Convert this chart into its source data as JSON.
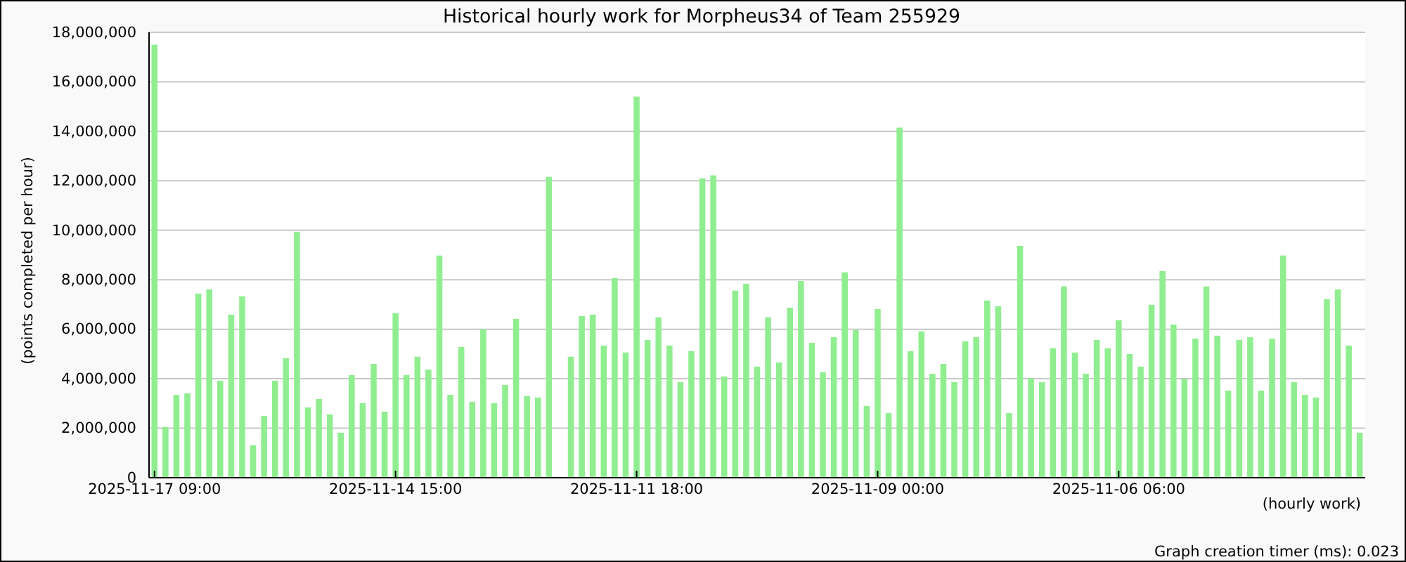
{
  "chart_data": {
    "type": "bar",
    "title": "Historical hourly work for Morpheus34 of Team 255929",
    "xlabel": "(hourly work)",
    "ylabel": "(points completed per hour)",
    "annotations": [
      "Graph creation timer (ms): 0.023"
    ],
    "categories": [
      "2025-11-17 09:00",
      null,
      null,
      null,
      null,
      null,
      null,
      null,
      null,
      null,
      null,
      null,
      null,
      null,
      null,
      null,
      null,
      null,
      null,
      null,
      null,
      null,
      "2025-11-14 15:00",
      null,
      null,
      null,
      null,
      null,
      null,
      null,
      null,
      null,
      null,
      null,
      null,
      null,
      null,
      null,
      null,
      null,
      null,
      null,
      null,
      null,
      "2025-11-11 18:00",
      null,
      null,
      null,
      null,
      null,
      null,
      null,
      null,
      null,
      null,
      null,
      null,
      null,
      null,
      null,
      null,
      null,
      null,
      null,
      null,
      null,
      "2025-11-09 00:00",
      null,
      null,
      null,
      null,
      null,
      null,
      null,
      null,
      null,
      null,
      null,
      null,
      null,
      null,
      null,
      null,
      null,
      null,
      null,
      null,
      null,
      "2025-11-06 06:00",
      null,
      null,
      null,
      null,
      null,
      null,
      null,
      null,
      null,
      null,
      null,
      null,
      null,
      null,
      null,
      null,
      null,
      null,
      null,
      null,
      null,
      null
    ],
    "values": [
      17500000,
      2050000,
      3350000,
      3410000,
      7440000,
      7610000,
      3920000,
      6590000,
      7330000,
      1310000,
      2500000,
      3920000,
      4830000,
      9940000,
      2840000,
      3180000,
      2560000,
      1820000,
      4150000,
      3010000,
      4600000,
      2670000,
      6650000,
      4150000,
      4890000,
      4370000,
      8980000,
      3350000,
      5280000,
      3070000,
      6000000,
      3010000,
      3750000,
      6420000,
      3300000,
      3240000,
      12160000,
      null,
      4890000,
      6530000,
      6590000,
      5340000,
      8070000,
      5060000,
      15400000,
      5570000,
      6480000,
      5340000,
      3860000,
      5110000,
      12100000,
      12220000,
      4090000,
      7560000,
      7840000,
      4490000,
      6480000,
      4660000,
      6870000,
      7950000,
      5450000,
      4260000,
      5680000,
      8300000,
      5970000,
      2900000,
      6820000,
      2610000,
      14150000,
      5110000,
      5910000,
      4200000,
      4600000,
      3860000,
      5510000,
      5680000,
      7160000,
      6930000,
      2610000,
      9370000,
      4030000,
      3860000,
      5230000,
      7730000,
      5060000,
      4200000,
      5570000,
      5230000,
      6360000,
      5000000,
      4490000,
      6990000,
      8350000,
      6190000,
      3980000,
      5620000,
      7730000,
      5740000,
      3520000,
      5570000,
      5680000,
      3520000,
      5620000,
      8980000,
      3860000,
      3350000,
      3240000,
      7220000,
      7610000,
      5340000,
      1820000
    ],
    "color": "#90ee90",
    "ylim": [
      0,
      18000000
    ],
    "yticks": [
      0,
      {
        "value": 2000000,
        "label": "2,000,000"
      },
      {
        "value": 4000000,
        "label": "4,000,000"
      },
      {
        "value": 6000000,
        "label": "6,000,000"
      },
      {
        "value": 8000000,
        "label": "8,000,000"
      },
      {
        "value": 10000000,
        "label": "10,000,000"
      },
      {
        "value": 12000000,
        "label": "12,000,000"
      },
      {
        "value": 14000000,
        "label": "14,000,000"
      },
      {
        "value": 16000000,
        "label": "16,000,000"
      },
      {
        "value": 18000000,
        "label": "18,000,000"
      }
    ],
    "grid": "y"
  }
}
